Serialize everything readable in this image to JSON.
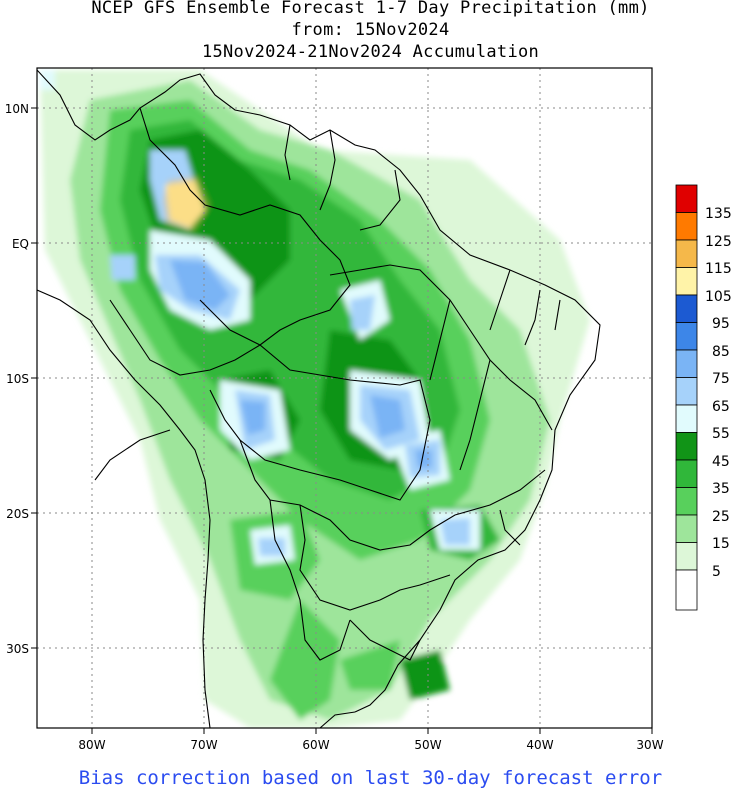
{
  "title": {
    "line1": "NCEP GFS Ensemble Forecast 1-7 Day Precipitation (mm)",
    "line2": "from: 15Nov2024",
    "line3": "15Nov2024-21Nov2024 Accumulation"
  },
  "axes": {
    "lon_ticks": [
      "80W",
      "70W",
      "60W",
      "50W",
      "40W",
      "30W"
    ],
    "lat_ticks": [
      "10N",
      "EQ",
      "10S",
      "20S",
      "30S"
    ]
  },
  "colorbar": {
    "labels": [
      "135",
      "125",
      "115",
      "105",
      "95",
      "85",
      "75",
      "65",
      "55",
      "45",
      "35",
      "25",
      "15",
      "5"
    ],
    "colors": [
      "#e00000",
      "#ff7a00",
      "#f5b84a",
      "#fff3a8",
      "#1c5ad2",
      "#3d86e8",
      "#7ab4f5",
      "#a6d2fa",
      "#e1fbfd",
      "#119417",
      "#30b73a",
      "#58d05c",
      "#9ee59b",
      "#ddf7d8",
      "#ffffff"
    ]
  },
  "footer": "Bias correction based on last 30-day forecast error"
}
